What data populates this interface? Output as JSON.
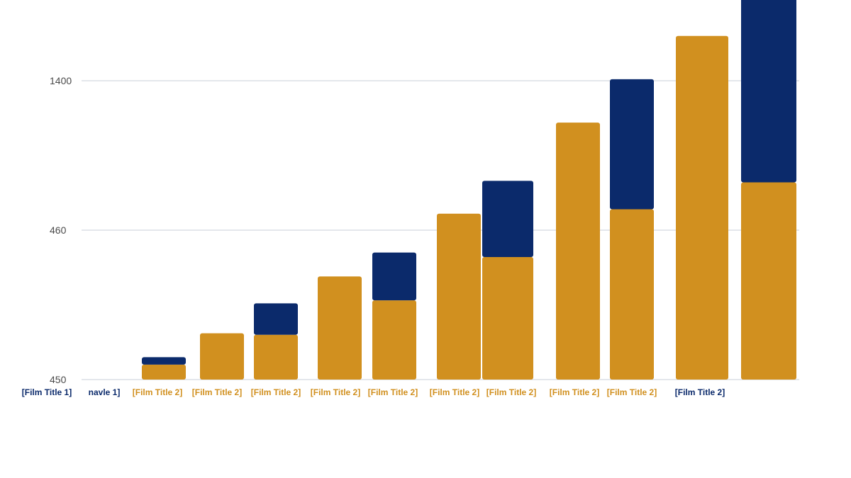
{
  "chart_data": {
    "type": "bar",
    "stacked": true,
    "y_ticks": [
      {
        "label": "450",
        "value": 0
      },
      {
        "label": "460",
        "value": 1
      },
      {
        "label": "1400",
        "value": 2
      }
    ],
    "ylim": [
      0,
      3.1
    ],
    "grid": true,
    "categories": [
      "[Film Title 1]",
      "navle 1]",
      "[Film Title 2]",
      "[Film Title 2]",
      "[Film Title 2]",
      "[Film Title 2]",
      "[Film Title 2]",
      "[Film Title 2]",
      "[Film Title 2]",
      "[Film Title 2]",
      "[Film Title 2]",
      "[Film Title 2]"
    ],
    "category_label_colors": [
      "#0b2a6b",
      "#0b2a6b",
      "#d1901f",
      "#d1901f",
      "#d1901f",
      "#d1901f",
      "#d1901f",
      "#d1901f",
      "#d1901f",
      "#d1901f",
      "#d1901f",
      "#0b2a6b"
    ],
    "series": [
      {
        "color": "#d1901f",
        "values": [
          0,
          0.1,
          0.31,
          0.3,
          0.69,
          0.53,
          1.11,
          0.82,
          1.72,
          1.14,
          2.3,
          1.32
        ]
      },
      {
        "color": "#0b2a6b",
        "values": [
          0,
          0.05,
          0,
          0.21,
          0,
          0.32,
          0,
          0.51,
          0,
          0.87,
          0,
          1.38
        ]
      }
    ],
    "series_renamed": true,
    "series_order_note": "",
    "colors": {
      "gold": "#d1901f",
      "navy": "#0b2a6b",
      "grid": "#c9cfd8",
      "axis_text": "#4a4a4a"
    }
  }
}
